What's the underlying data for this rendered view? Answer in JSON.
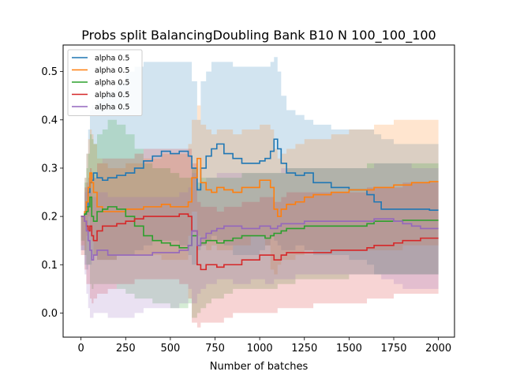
{
  "chart_data": {
    "type": "line",
    "title": "Probs split BalancingDoubling Bank B10 N 100_100_100",
    "xlabel": "Number of batches",
    "ylabel": "",
    "xlim": [
      -100,
      2090
    ],
    "ylim": [
      -0.05,
      0.555
    ],
    "xticks": [
      0,
      250,
      500,
      750,
      1000,
      1250,
      1500,
      1750,
      2000
    ],
    "yticks": [
      0.0,
      0.1,
      0.2,
      0.3,
      0.4,
      0.5
    ],
    "grid": false,
    "legend_position": "upper-left",
    "series": [
      {
        "name": "alpha 0.5",
        "color": "#1f77b4",
        "x": [
          0,
          20,
          30,
          40,
          50,
          60,
          70,
          90,
          120,
          150,
          200,
          250,
          300,
          350,
          400,
          450,
          500,
          550,
          600,
          620,
          650,
          670,
          700,
          730,
          760,
          800,
          850,
          900,
          950,
          1000,
          1030,
          1060,
          1080,
          1100,
          1120,
          1150,
          1200,
          1250,
          1300,
          1400,
          1500,
          1600,
          1640,
          1680,
          1750,
          1800,
          1850,
          1900,
          1950,
          2000
        ],
        "y": [
          0.2,
          0.205,
          0.22,
          0.25,
          0.27,
          0.275,
          0.29,
          0.28,
          0.275,
          0.28,
          0.285,
          0.29,
          0.3,
          0.315,
          0.325,
          0.335,
          0.33,
          0.335,
          0.325,
          0.3,
          0.255,
          0.3,
          0.325,
          0.34,
          0.35,
          0.33,
          0.32,
          0.31,
          0.31,
          0.315,
          0.32,
          0.335,
          0.36,
          0.34,
          0.31,
          0.29,
          0.285,
          0.29,
          0.27,
          0.26,
          0.255,
          0.245,
          0.23,
          0.215,
          0.215,
          0.215,
          0.215,
          0.215,
          0.213,
          0.213
        ],
        "band_upper": [
          0.2,
          0.28,
          0.33,
          0.38,
          0.42,
          0.43,
          0.42,
          0.44,
          0.45,
          0.46,
          0.48,
          0.5,
          0.51,
          0.52,
          0.52,
          0.52,
          0.52,
          0.52,
          0.52,
          0.48,
          0.4,
          0.48,
          0.5,
          0.52,
          0.52,
          0.52,
          0.51,
          0.51,
          0.51,
          0.51,
          0.51,
          0.52,
          0.53,
          0.5,
          0.45,
          0.42,
          0.41,
          0.4,
          0.39,
          0.38,
          0.38,
          0.38,
          0.37,
          0.36,
          0.35,
          0.35,
          0.35,
          0.35,
          0.35,
          0.35
        ],
        "band_lower": [
          0.2,
          0.13,
          0.1,
          0.09,
          0.1,
          0.1,
          0.12,
          0.12,
          0.11,
          0.11,
          0.11,
          0.12,
          0.12,
          0.13,
          0.14,
          0.15,
          0.15,
          0.15,
          0.14,
          0.12,
          0.1,
          0.13,
          0.14,
          0.15,
          0.16,
          0.15,
          0.14,
          0.12,
          0.12,
          0.12,
          0.13,
          0.14,
          0.16,
          0.15,
          0.14,
          0.13,
          0.13,
          0.14,
          0.13,
          0.12,
          0.12,
          0.11,
          0.1,
          0.08,
          0.08,
          0.08,
          0.08,
          0.08,
          0.08,
          0.08
        ]
      },
      {
        "name": "alpha 0.5",
        "color": "#ff7f0e",
        "x": [
          0,
          20,
          30,
          40,
          50,
          60,
          70,
          90,
          120,
          150,
          200,
          250,
          300,
          350,
          400,
          450,
          500,
          550,
          600,
          620,
          650,
          670,
          700,
          730,
          760,
          800,
          850,
          900,
          950,
          1000,
          1030,
          1060,
          1080,
          1100,
          1120,
          1150,
          1200,
          1250,
          1300,
          1400,
          1500,
          1600,
          1640,
          1680,
          1750,
          1800,
          1850,
          1900,
          1950,
          2000
        ],
        "y": [
          0.2,
          0.21,
          0.23,
          0.26,
          0.29,
          0.27,
          0.25,
          0.22,
          0.21,
          0.21,
          0.21,
          0.215,
          0.215,
          0.22,
          0.22,
          0.225,
          0.22,
          0.22,
          0.23,
          0.28,
          0.32,
          0.27,
          0.255,
          0.25,
          0.26,
          0.255,
          0.25,
          0.26,
          0.26,
          0.275,
          0.275,
          0.26,
          0.215,
          0.2,
          0.215,
          0.225,
          0.23,
          0.24,
          0.245,
          0.25,
          0.255,
          0.255,
          0.26,
          0.26,
          0.265,
          0.265,
          0.27,
          0.27,
          0.272,
          0.272
        ],
        "band_upper": [
          0.2,
          0.28,
          0.33,
          0.36,
          0.38,
          0.37,
          0.35,
          0.32,
          0.31,
          0.3,
          0.3,
          0.31,
          0.31,
          0.32,
          0.32,
          0.33,
          0.33,
          0.33,
          0.35,
          0.4,
          0.43,
          0.39,
          0.38,
          0.37,
          0.38,
          0.38,
          0.37,
          0.38,
          0.38,
          0.39,
          0.39,
          0.38,
          0.34,
          0.32,
          0.33,
          0.34,
          0.35,
          0.36,
          0.36,
          0.37,
          0.38,
          0.38,
          0.39,
          0.39,
          0.4,
          0.4,
          0.4,
          0.4,
          0.4,
          0.4
        ],
        "band_lower": [
          0.2,
          0.14,
          0.13,
          0.16,
          0.2,
          0.17,
          0.15,
          0.12,
          0.11,
          0.11,
          0.11,
          0.12,
          0.12,
          0.12,
          0.12,
          0.12,
          0.11,
          0.11,
          0.11,
          0.16,
          0.21,
          0.16,
          0.14,
          0.13,
          0.14,
          0.13,
          0.13,
          0.14,
          0.14,
          0.16,
          0.16,
          0.14,
          0.09,
          0.08,
          0.1,
          0.11,
          0.11,
          0.12,
          0.13,
          0.13,
          0.13,
          0.13,
          0.13,
          0.13,
          0.13,
          0.13,
          0.14,
          0.14,
          0.14,
          0.14
        ]
      },
      {
        "name": "alpha 0.5",
        "color": "#2ca02c",
        "x": [
          0,
          20,
          30,
          40,
          50,
          60,
          70,
          90,
          120,
          150,
          200,
          250,
          300,
          350,
          400,
          450,
          500,
          550,
          600,
          620,
          650,
          670,
          700,
          730,
          760,
          800,
          850,
          900,
          950,
          1000,
          1030,
          1060,
          1080,
          1100,
          1120,
          1150,
          1200,
          1250,
          1300,
          1400,
          1500,
          1600,
          1640,
          1680,
          1750,
          1800,
          1850,
          1900,
          1950,
          2000
        ],
        "y": [
          0.2,
          0.205,
          0.21,
          0.22,
          0.24,
          0.2,
          0.19,
          0.21,
          0.215,
          0.22,
          0.215,
          0.2,
          0.18,
          0.16,
          0.15,
          0.145,
          0.14,
          0.135,
          0.14,
          0.16,
          0.14,
          0.145,
          0.15,
          0.15,
          0.145,
          0.15,
          0.155,
          0.16,
          0.16,
          0.16,
          0.155,
          0.16,
          0.165,
          0.165,
          0.17,
          0.175,
          0.175,
          0.18,
          0.18,
          0.18,
          0.18,
          0.185,
          0.19,
          0.19,
          0.19,
          0.192,
          0.192,
          0.192,
          0.192,
          0.192
        ],
        "band_upper": [
          0.2,
          0.27,
          0.3,
          0.33,
          0.37,
          0.36,
          0.35,
          0.37,
          0.38,
          0.4,
          0.39,
          0.37,
          0.34,
          0.31,
          0.3,
          0.3,
          0.29,
          0.28,
          0.28,
          0.3,
          0.27,
          0.28,
          0.28,
          0.28,
          0.28,
          0.28,
          0.28,
          0.29,
          0.29,
          0.29,
          0.29,
          0.29,
          0.29,
          0.29,
          0.29,
          0.3,
          0.3,
          0.3,
          0.3,
          0.3,
          0.3,
          0.31,
          0.31,
          0.31,
          0.31,
          0.31,
          0.31,
          0.31,
          0.31,
          0.31
        ],
        "band_lower": [
          0.2,
          0.15,
          0.12,
          0.1,
          0.1,
          0.06,
          0.05,
          0.06,
          0.06,
          0.06,
          0.06,
          0.05,
          0.04,
          0.03,
          0.03,
          0.02,
          0.02,
          0.01,
          0.01,
          0.02,
          -0.01,
          0.0,
          0.01,
          0.02,
          0.03,
          0.03,
          0.04,
          0.05,
          0.05,
          0.05,
          0.05,
          0.05,
          0.05,
          0.05,
          0.06,
          0.06,
          0.06,
          0.07,
          0.07,
          0.07,
          0.07,
          0.08,
          0.08,
          0.08,
          0.08,
          0.08,
          0.08,
          0.08,
          0.08,
          0.08
        ]
      },
      {
        "name": "alpha 0.5",
        "color": "#d62728",
        "x": [
          0,
          20,
          30,
          40,
          50,
          60,
          70,
          90,
          120,
          150,
          200,
          250,
          300,
          350,
          400,
          450,
          500,
          550,
          600,
          620,
          650,
          670,
          700,
          730,
          760,
          800,
          850,
          900,
          950,
          1000,
          1030,
          1060,
          1080,
          1100,
          1120,
          1150,
          1200,
          1250,
          1300,
          1400,
          1500,
          1600,
          1640,
          1680,
          1750,
          1800,
          1850,
          1900,
          1950,
          2000
        ],
        "y": [
          0.2,
          0.19,
          0.18,
          0.17,
          0.18,
          0.16,
          0.15,
          0.17,
          0.18,
          0.18,
          0.185,
          0.19,
          0.195,
          0.2,
          0.2,
          0.2,
          0.2,
          0.205,
          0.2,
          0.17,
          0.1,
          0.09,
          0.1,
          0.1,
          0.095,
          0.1,
          0.1,
          0.11,
          0.11,
          0.12,
          0.12,
          0.12,
          0.11,
          0.11,
          0.12,
          0.125,
          0.125,
          0.125,
          0.125,
          0.13,
          0.13,
          0.135,
          0.14,
          0.14,
          0.145,
          0.15,
          0.15,
          0.155,
          0.155,
          0.155
        ],
        "band_upper": [
          0.2,
          0.26,
          0.27,
          0.28,
          0.3,
          0.29,
          0.28,
          0.31,
          0.32,
          0.32,
          0.32,
          0.32,
          0.33,
          0.34,
          0.34,
          0.34,
          0.34,
          0.34,
          0.34,
          0.31,
          0.23,
          0.22,
          0.22,
          0.22,
          0.21,
          0.22,
          0.22,
          0.23,
          0.23,
          0.24,
          0.24,
          0.24,
          0.23,
          0.23,
          0.24,
          0.25,
          0.25,
          0.25,
          0.25,
          0.25,
          0.25,
          0.26,
          0.26,
          0.26,
          0.26,
          0.27,
          0.27,
          0.27,
          0.27,
          0.27
        ],
        "band_lower": [
          0.2,
          0.12,
          0.09,
          0.06,
          0.06,
          0.03,
          0.02,
          0.03,
          0.04,
          0.04,
          0.05,
          0.06,
          0.06,
          0.07,
          0.07,
          0.07,
          0.07,
          0.07,
          0.06,
          0.03,
          -0.02,
          -0.03,
          -0.02,
          -0.02,
          -0.02,
          -0.02,
          -0.01,
          0.0,
          0.0,
          0.0,
          0.0,
          0.0,
          0.0,
          0.0,
          0.01,
          0.01,
          0.01,
          0.01,
          0.01,
          0.02,
          0.02,
          0.02,
          0.03,
          0.03,
          0.03,
          0.04,
          0.04,
          0.04,
          0.04,
          0.04
        ]
      },
      {
        "name": "alpha 0.5",
        "color": "#9467bd",
        "x": [
          0,
          20,
          30,
          40,
          50,
          60,
          70,
          90,
          120,
          150,
          200,
          250,
          300,
          350,
          400,
          450,
          500,
          550,
          600,
          620,
          650,
          670,
          700,
          730,
          760,
          800,
          850,
          900,
          950,
          1000,
          1030,
          1060,
          1080,
          1100,
          1120,
          1150,
          1200,
          1250,
          1300,
          1400,
          1500,
          1600,
          1640,
          1680,
          1750,
          1800,
          1850,
          1900,
          1950,
          2000
        ],
        "y": [
          0.2,
          0.19,
          0.17,
          0.15,
          0.13,
          0.11,
          0.12,
          0.13,
          0.13,
          0.12,
          0.12,
          0.12,
          0.12,
          0.12,
          0.125,
          0.125,
          0.125,
          0.13,
          0.14,
          0.17,
          0.14,
          0.155,
          0.165,
          0.17,
          0.175,
          0.18,
          0.18,
          0.175,
          0.175,
          0.18,
          0.18,
          0.175,
          0.175,
          0.18,
          0.185,
          0.185,
          0.185,
          0.19,
          0.19,
          0.19,
          0.19,
          0.19,
          0.195,
          0.195,
          0.19,
          0.185,
          0.18,
          0.175,
          0.175,
          0.175
        ],
        "band_upper": [
          0.2,
          0.25,
          0.26,
          0.26,
          0.25,
          0.24,
          0.24,
          0.25,
          0.25,
          0.24,
          0.24,
          0.24,
          0.24,
          0.24,
          0.24,
          0.24,
          0.24,
          0.25,
          0.26,
          0.29,
          0.26,
          0.27,
          0.28,
          0.28,
          0.29,
          0.29,
          0.29,
          0.29,
          0.29,
          0.29,
          0.29,
          0.29,
          0.29,
          0.29,
          0.3,
          0.3,
          0.3,
          0.3,
          0.3,
          0.3,
          0.3,
          0.3,
          0.31,
          0.31,
          0.31,
          0.31,
          0.3,
          0.3,
          0.3,
          0.3
        ],
        "band_lower": [
          0.2,
          0.13,
          0.08,
          0.04,
          0.01,
          -0.01,
          -0.01,
          0.0,
          0.0,
          0.0,
          -0.01,
          -0.01,
          -0.01,
          0.0,
          0.01,
          0.01,
          0.01,
          0.01,
          0.02,
          0.05,
          0.02,
          0.04,
          0.05,
          0.06,
          0.06,
          0.07,
          0.07,
          0.06,
          0.06,
          0.07,
          0.07,
          0.06,
          0.06,
          0.07,
          0.07,
          0.07,
          0.07,
          0.08,
          0.08,
          0.08,
          0.08,
          0.08,
          0.08,
          0.08,
          0.07,
          0.06,
          0.05,
          0.05,
          0.05,
          0.05
        ]
      }
    ]
  }
}
